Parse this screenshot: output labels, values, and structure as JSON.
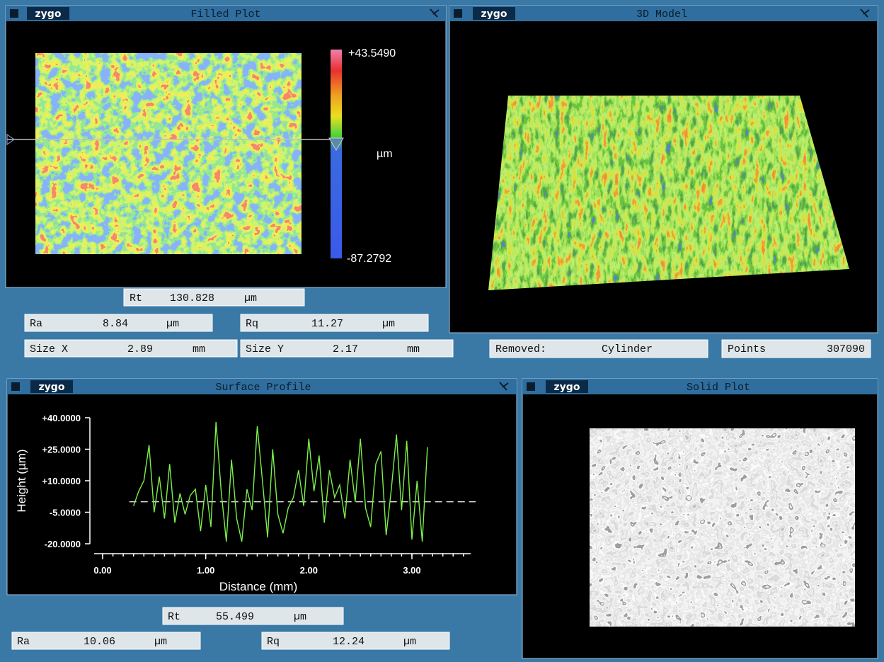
{
  "panels": {
    "filled_plot": {
      "logo": "zygo",
      "title": "Filled Plot",
      "scale_max": "+43.5490",
      "scale_min": "-87.2792",
      "unit": "µm"
    },
    "model_3d": {
      "logo": "zygo",
      "title": "3D Model"
    },
    "surface_profile": {
      "logo": "zygo",
      "title": "Surface Profile",
      "chart": {
        "type": "line",
        "x_label": "Distance (mm)",
        "y_label": "Height (µm)",
        "xlim": [
          0,
          3.57
        ],
        "ylim": [
          -20,
          40
        ],
        "xticks": [
          {
            "value": 0,
            "label": "0.00"
          },
          {
            "value": 1,
            "label": "1.00"
          },
          {
            "value": 2,
            "label": "2.00"
          },
          {
            "value": 3,
            "label": "3.00"
          }
        ],
        "yticks": [
          {
            "value": 40,
            "label": "+40.0000"
          },
          {
            "value": 25,
            "label": "+25.0000"
          },
          {
            "value": 10,
            "label": "+10.0000"
          },
          {
            "value": -5,
            "label": "-5.0000"
          },
          {
            "value": -20,
            "label": "-20.0000"
          }
        ],
        "mean_line": 0,
        "color": "#7cf04a",
        "x": [
          0.3,
          0.35,
          0.4,
          0.45,
          0.5,
          0.55,
          0.6,
          0.65,
          0.7,
          0.75,
          0.8,
          0.85,
          0.9,
          0.95,
          1.0,
          1.05,
          1.1,
          1.15,
          1.2,
          1.25,
          1.3,
          1.35,
          1.4,
          1.45,
          1.5,
          1.55,
          1.6,
          1.65,
          1.7,
          1.75,
          1.8,
          1.85,
          1.9,
          1.95,
          2.0,
          2.05,
          2.1,
          2.15,
          2.2,
          2.25,
          2.3,
          2.35,
          2.4,
          2.45,
          2.5,
          2.55,
          2.6,
          2.65,
          2.7,
          2.75,
          2.8,
          2.85,
          2.9,
          2.95,
          3.0,
          3.05,
          3.1,
          3.15
        ],
        "values": [
          -2,
          5,
          10,
          27,
          -5,
          12,
          -8,
          18,
          -10,
          4,
          -6,
          3,
          6,
          -14,
          8,
          -12,
          38,
          5,
          -19,
          20,
          -8,
          -19,
          6,
          -4,
          36,
          10,
          -17,
          25,
          -6,
          -15,
          -3,
          2,
          15,
          -2,
          30,
          5,
          22,
          -10,
          15,
          2,
          8,
          -8,
          20,
          0,
          30,
          -3,
          -12,
          18,
          24,
          -16,
          6,
          32,
          -4,
          29,
          -18,
          10,
          -19,
          26
        ]
      }
    },
    "solid_plot": {
      "logo": "zygo",
      "title": "Solid Plot"
    }
  },
  "results_top": {
    "rt": {
      "label": "Rt",
      "value": "130.828",
      "unit": "µm"
    },
    "ra": {
      "label": "Ra",
      "value": "8.84",
      "unit": "µm"
    },
    "rq": {
      "label": "Rq",
      "value": "11.27",
      "unit": "µm"
    },
    "size_x": {
      "label": "Size X",
      "value": "2.89",
      "unit": "mm"
    },
    "size_y": {
      "label": "Size Y",
      "value": "2.17",
      "unit": "mm"
    },
    "removed": {
      "label": "Removed:",
      "value": "Cylinder"
    },
    "points": {
      "label": "Points",
      "value": "307090"
    }
  },
  "results_profile": {
    "rt": {
      "label": "Rt",
      "value": "55.499",
      "unit": "µm"
    },
    "ra": {
      "label": "Ra",
      "value": "10.06",
      "unit": "µm"
    },
    "rq": {
      "label": "Rq",
      "value": "12.24",
      "unit": "µm"
    }
  }
}
